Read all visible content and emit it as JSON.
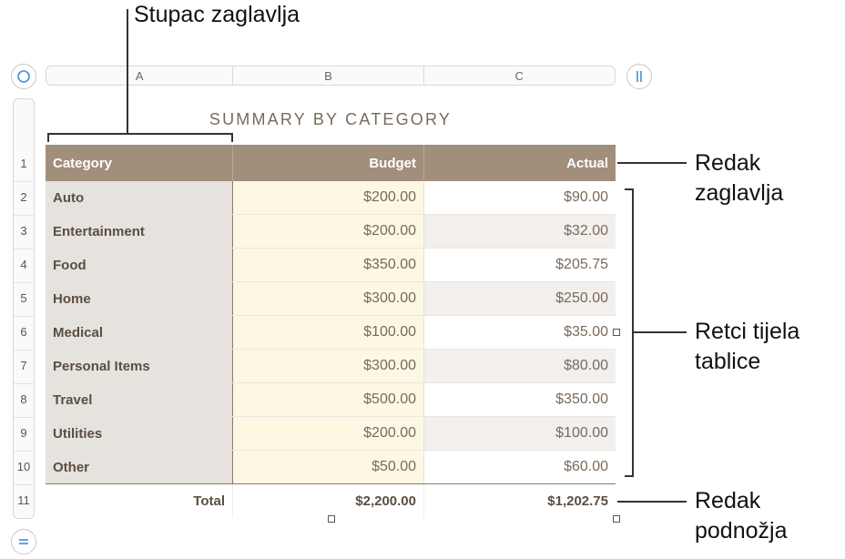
{
  "columns": [
    "A",
    "B",
    "C"
  ],
  "row_numbers": [
    "1",
    "2",
    "3",
    "4",
    "5",
    "6",
    "7",
    "8",
    "9",
    "10",
    "11"
  ],
  "table": {
    "title": "SUMMARY BY CATEGORY",
    "header": [
      "Category",
      "Budget",
      "Actual"
    ],
    "rows": [
      {
        "category": "Auto",
        "budget": "$200.00",
        "actual": "$90.00"
      },
      {
        "category": "Entertainment",
        "budget": "$200.00",
        "actual": "$32.00"
      },
      {
        "category": "Food",
        "budget": "$350.00",
        "actual": "$205.75"
      },
      {
        "category": "Home",
        "budget": "$300.00",
        "actual": "$250.00"
      },
      {
        "category": "Medical",
        "budget": "$100.00",
        "actual": "$35.00"
      },
      {
        "category": "Personal Items",
        "budget": "$300.00",
        "actual": "$80.00"
      },
      {
        "category": "Travel",
        "budget": "$500.00",
        "actual": "$350.00"
      },
      {
        "category": "Utilities",
        "budget": "$200.00",
        "actual": "$100.00"
      },
      {
        "category": "Other",
        "budget": "$50.00",
        "actual": "$60.00"
      }
    ],
    "footer": [
      "Total",
      "$2,200.00",
      "$1,202.75"
    ]
  },
  "callouts": {
    "header_column": "Stupac zaglavlja",
    "header_row": [
      "Redak",
      "zaglavlja"
    ],
    "body_rows": [
      "Retci tijela",
      "tablice"
    ],
    "footer_row": [
      "Redak",
      "podnožja"
    ]
  },
  "colors": {
    "header_bg": "#a18e7b",
    "header_column_bg": "#e6e2dd",
    "budget_column_bg": "#fdf8e4",
    "alt_row_bg": "#f2efec",
    "text_brown": "#7a6a5c",
    "control_blue": "#3b8fe0"
  },
  "icons": {
    "table_select_handle": "circle-icon",
    "column_handle": "pause-bars-icon",
    "row_handle": "equals-icon"
  }
}
